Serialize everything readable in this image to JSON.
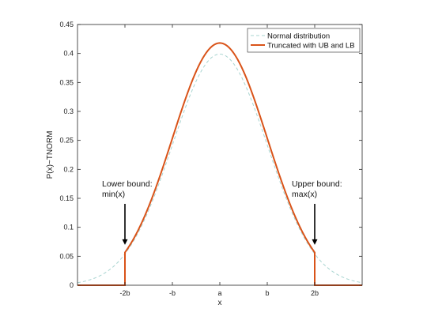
{
  "chart_data": {
    "type": "line",
    "xlabel": "x",
    "ylabel": "P(x)~TNORM",
    "xlim": [
      -3,
      3
    ],
    "ylim": [
      0,
      0.45
    ],
    "x_ticks": [
      {
        "value": -2,
        "label": "-2b"
      },
      {
        "value": -1,
        "label": "-b"
      },
      {
        "value": 0,
        "label": "a"
      },
      {
        "value": 1,
        "label": "b"
      },
      {
        "value": 2,
        "label": "2b"
      }
    ],
    "y_ticks": [
      {
        "value": 0,
        "label": "0"
      },
      {
        "value": 0.05,
        "label": "0.05"
      },
      {
        "value": 0.1,
        "label": "0.1"
      },
      {
        "value": 0.15,
        "label": "0.15"
      },
      {
        "value": 0.2,
        "label": "0.2"
      },
      {
        "value": 0.25,
        "label": "0.25"
      },
      {
        "value": 0.3,
        "label": "0.3"
      },
      {
        "value": 0.35,
        "label": "0.35"
      },
      {
        "value": 0.4,
        "label": "0.4"
      },
      {
        "value": 0.45,
        "label": "0.45"
      }
    ],
    "grid": false,
    "legend_position": "top-right",
    "series": [
      {
        "name": "Normal distribution",
        "color": "#a8d4d0",
        "style": "dashed",
        "x": [
          -3,
          -2.75,
          -2.5,
          -2.25,
          -2,
          -1.75,
          -1.5,
          -1.25,
          -1,
          -0.75,
          -0.5,
          -0.25,
          0,
          0.25,
          0.5,
          0.75,
          1,
          1.25,
          1.5,
          1.75,
          2,
          2.25,
          2.5,
          2.75,
          3
        ],
        "y": [
          0.0044,
          0.0091,
          0.0175,
          0.0317,
          0.054,
          0.0863,
          0.1295,
          0.1826,
          0.242,
          0.3011,
          0.3521,
          0.3867,
          0.3989,
          0.3867,
          0.3521,
          0.3011,
          0.242,
          0.1826,
          0.1295,
          0.0863,
          0.054,
          0.0317,
          0.0175,
          0.0091,
          0.0044
        ]
      },
      {
        "name": "Truncated with UB and LB",
        "color": "#d95319",
        "style": "solid",
        "x": [
          -3,
          -2,
          -2,
          -1.75,
          -1.5,
          -1.25,
          -1,
          -0.75,
          -0.5,
          -0.25,
          0,
          0.25,
          0.5,
          0.75,
          1,
          1.25,
          1.5,
          1.75,
          2,
          2,
          3
        ],
        "y": [
          0,
          0,
          0.0566,
          0.0904,
          0.1357,
          0.1913,
          0.2536,
          0.3155,
          0.3689,
          0.4052,
          0.418,
          0.4052,
          0.3689,
          0.3155,
          0.2536,
          0.1913,
          0.1357,
          0.0904,
          0.0566,
          0,
          0
        ]
      }
    ],
    "annotations": [
      {
        "lines": [
          "Lower bound:",
          "min(x)"
        ],
        "x": -2,
        "arrow_tip_y": 0.056
      },
      {
        "lines": [
          "Upper bound:",
          "max(x)"
        ],
        "x": 2,
        "arrow_tip_y": 0.056
      }
    ]
  }
}
